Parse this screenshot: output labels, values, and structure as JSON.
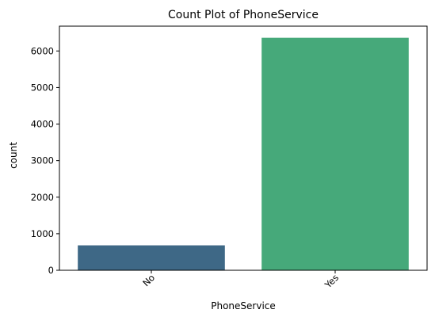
{
  "chart_data": {
    "type": "bar",
    "title": "Count Plot of PhoneService",
    "xlabel": "PhoneService",
    "ylabel": "count",
    "categories": [
      "No",
      "Yes"
    ],
    "values": [
      682,
      6361
    ],
    "colors": [
      "#3e6886",
      "#46a97a"
    ],
    "ylim": [
      0,
      6679
    ],
    "yticks": [
      0,
      1000,
      2000,
      3000,
      4000,
      5000,
      6000
    ],
    "xtick_rotation_deg": 45,
    "grid": false,
    "legend": "none"
  }
}
